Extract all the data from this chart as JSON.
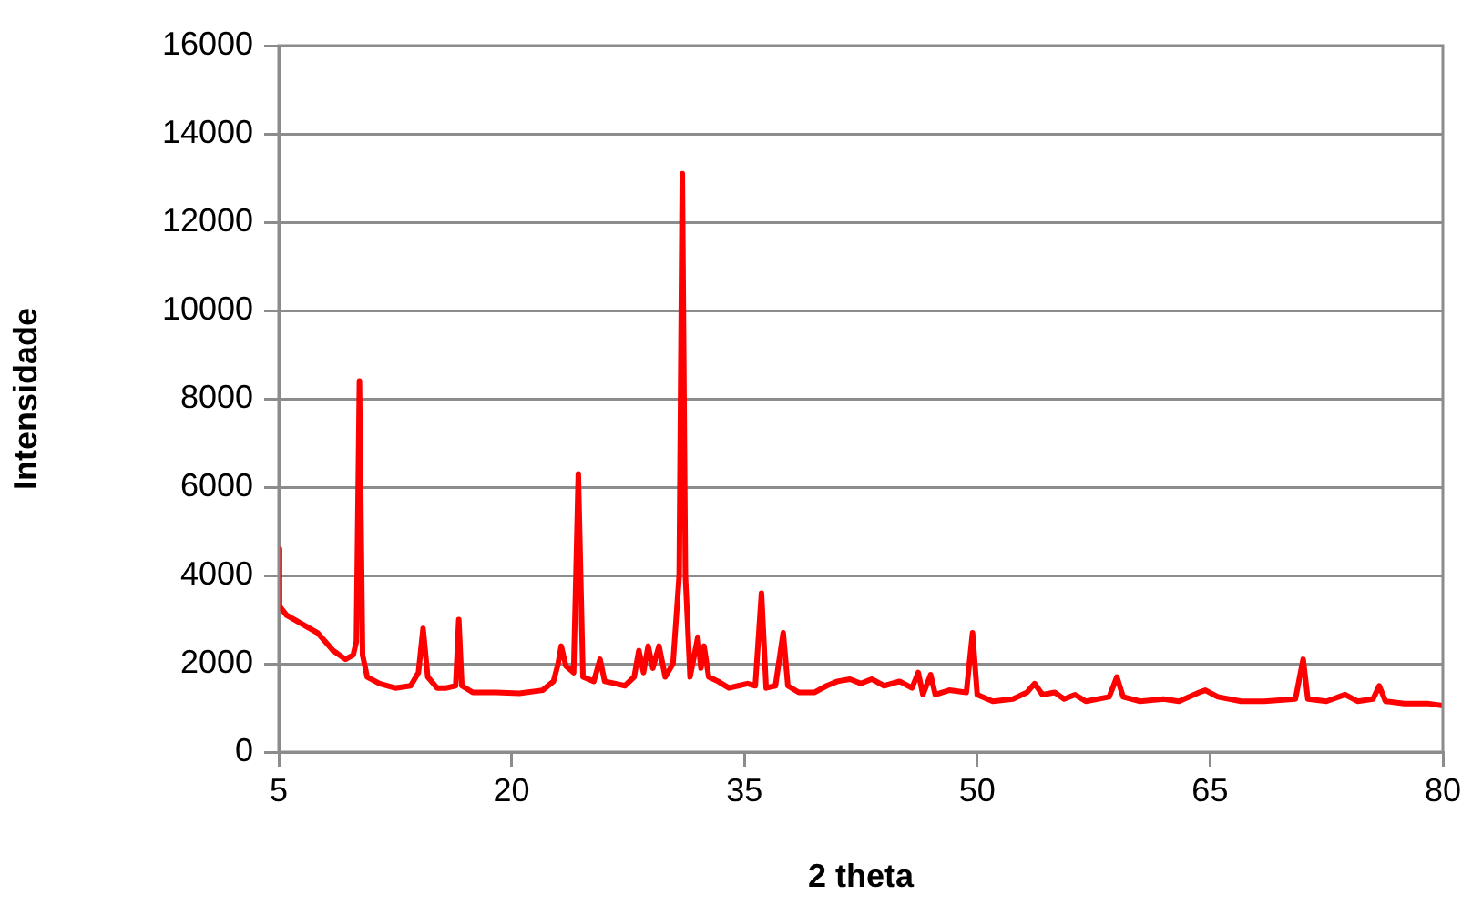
{
  "chart_data": {
    "type": "line",
    "xlabel": "2 theta",
    "ylabel": "Intensidade",
    "xlim": [
      5,
      80
    ],
    "xticks": [
      5,
      20,
      35,
      50,
      65,
      80
    ],
    "ylim": [
      0,
      16000
    ],
    "yticks": [
      0,
      2000,
      4000,
      6000,
      8000,
      10000,
      12000,
      14000,
      16000
    ],
    "grid": "y",
    "legend": false,
    "marker": "none",
    "line_style": "solid",
    "series": [
      {
        "color": "#ff0000",
        "x": [
          5,
          5.05,
          5.5,
          6.5,
          7.5,
          8.5,
          9.3,
          9.8,
          10.0,
          10.2,
          10.4,
          10.7,
          11.5,
          12.5,
          13.5,
          14.0,
          14.3,
          14.6,
          15.2,
          15.8,
          16.4,
          16.6,
          16.8,
          17.5,
          19,
          20.5,
          22,
          22.7,
          23.0,
          23.2,
          23.5,
          24.0,
          24.3,
          24.6,
          25.3,
          25.7,
          26.0,
          26.7,
          27.3,
          27.9,
          28.2,
          28.5,
          28.8,
          29.1,
          29.5,
          29.9,
          30.4,
          30.8,
          31.0,
          31.2,
          31.5,
          32.0,
          32.2,
          32.4,
          32.7,
          33.3,
          34,
          34.6,
          35.2,
          35.7,
          36.1,
          36.4,
          37.0,
          37.5,
          37.8,
          38.5,
          39.5,
          40.3,
          41,
          41.8,
          42.5,
          43.2,
          44,
          45,
          45.8,
          46.2,
          46.5,
          47.0,
          47.3,
          48.2,
          49.3,
          49.7,
          50.0,
          51,
          52.3,
          53.2,
          53.7,
          54.2,
          55,
          55.6,
          56.3,
          57,
          58.5,
          59.0,
          59.4,
          60.5,
          62,
          63,
          64.3,
          64.7,
          65.5,
          67,
          68.5,
          70.5,
          71.0,
          71.3,
          72.5,
          73.7,
          74.5,
          75.5,
          75.9,
          76.3,
          77.5,
          79,
          80
        ],
        "values": [
          4600,
          3300,
          3100,
          2900,
          2700,
          2300,
          2100,
          2200,
          2500,
          8400,
          2200,
          1700,
          1550,
          1450,
          1500,
          1800,
          2800,
          1700,
          1450,
          1450,
          1500,
          3000,
          1500,
          1350,
          1350,
          1330,
          1400,
          1600,
          2000,
          2400,
          1950,
          1800,
          6300,
          1700,
          1600,
          2100,
          1600,
          1550,
          1500,
          1700,
          2300,
          1800,
          2400,
          1900,
          2400,
          1700,
          2000,
          4000,
          13100,
          4000,
          1700,
          2600,
          1900,
          2400,
          1700,
          1600,
          1450,
          1500,
          1550,
          1500,
          3600,
          1450,
          1500,
          2700,
          1500,
          1350,
          1350,
          1500,
          1600,
          1650,
          1550,
          1650,
          1500,
          1600,
          1450,
          1800,
          1300,
          1750,
          1300,
          1400,
          1350,
          2700,
          1300,
          1150,
          1200,
          1350,
          1550,
          1300,
          1350,
          1200,
          1300,
          1150,
          1250,
          1700,
          1250,
          1150,
          1200,
          1150,
          1350,
          1400,
          1250,
          1150,
          1150,
          1200,
          2100,
          1200,
          1150,
          1300,
          1150,
          1200,
          1500,
          1150,
          1100,
          1100,
          1050
        ]
      }
    ]
  }
}
